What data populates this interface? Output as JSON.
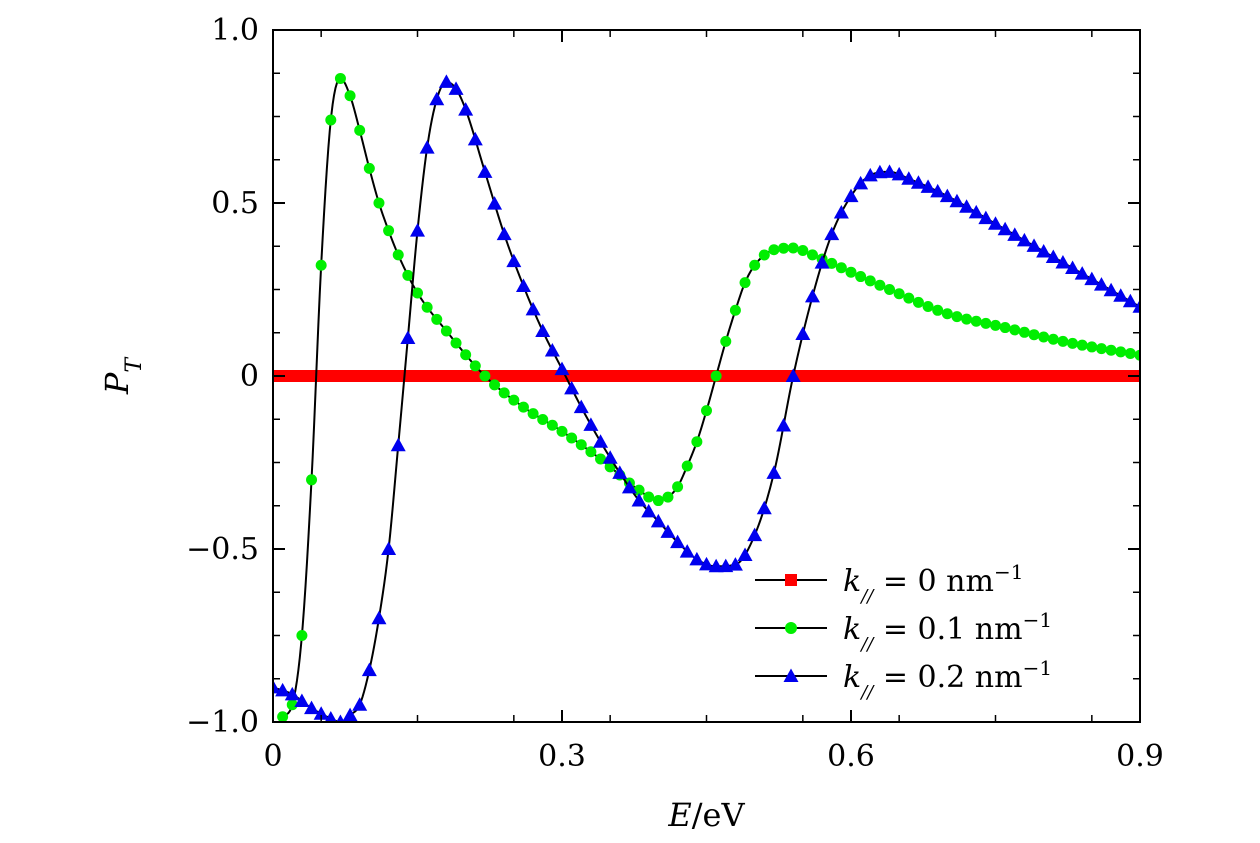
{
  "chart_data": {
    "type": "line",
    "title": "",
    "xlabel": {
      "var": "E",
      "unit": "/eV"
    },
    "ylabel": {
      "var": "P",
      "sub": "T"
    },
    "xlim": [
      0,
      0.9
    ],
    "ylim": [
      -1.0,
      1.0
    ],
    "grid": false,
    "legend_position": "bottom-right",
    "x_ticks": [
      {
        "value": 0,
        "label": "0"
      },
      {
        "value": 0.3,
        "label": "0.3"
      },
      {
        "value": 0.6,
        "label": "0.6"
      },
      {
        "value": 0.9,
        "label": "0.9"
      }
    ],
    "y_ticks": [
      {
        "value": -1.0,
        "label": "−1.0"
      },
      {
        "value": -0.5,
        "label": "−0.5"
      },
      {
        "value": 0,
        "label": "0"
      },
      {
        "value": 0.5,
        "label": "0.5"
      },
      {
        "value": 1.0,
        "label": "1.0"
      }
    ],
    "series": [
      {
        "name": "k// = 0 nm−1",
        "legend": {
          "var": "k",
          "sub": "//",
          "rest": " = 0 nm",
          "sup": "−1"
        },
        "marker": "square",
        "color": "#ff0000",
        "x_start": 0,
        "x_end": 0.9,
        "x_step": 0.005,
        "values": [
          [
            0,
            0
          ],
          [
            0.9,
            0
          ]
        ]
      },
      {
        "name": "k// = 0.1 nm−1",
        "legend": {
          "var": "k",
          "sub": "//",
          "rest": " = 0.1 nm",
          "sup": "−1"
        },
        "marker": "circle",
        "color": "#00ee00",
        "x_start": 0.01,
        "x_end": 0.9,
        "x_step": 0.01,
        "values": [
          [
            0.01,
            -0.985
          ],
          [
            0.02,
            -0.95
          ],
          [
            0.03,
            -0.75
          ],
          [
            0.04,
            -0.3
          ],
          [
            0.05,
            0.32
          ],
          [
            0.06,
            0.74
          ],
          [
            0.07,
            0.86
          ],
          [
            0.08,
            0.81
          ],
          [
            0.09,
            0.71
          ],
          [
            0.1,
            0.6
          ],
          [
            0.11,
            0.5
          ],
          [
            0.12,
            0.42
          ],
          [
            0.13,
            0.35
          ],
          [
            0.15,
            0.24
          ],
          [
            0.18,
            0.13
          ],
          [
            0.22,
            0.0
          ],
          [
            0.26,
            -0.09
          ],
          [
            0.3,
            -0.16
          ],
          [
            0.34,
            -0.24
          ],
          [
            0.38,
            -0.33
          ],
          [
            0.4,
            -0.36
          ],
          [
            0.41,
            -0.35
          ],
          [
            0.42,
            -0.32
          ],
          [
            0.43,
            -0.26
          ],
          [
            0.44,
            -0.19
          ],
          [
            0.45,
            -0.1
          ],
          [
            0.46,
            0.0
          ],
          [
            0.47,
            0.1
          ],
          [
            0.48,
            0.19
          ],
          [
            0.49,
            0.27
          ],
          [
            0.5,
            0.32
          ],
          [
            0.52,
            0.365
          ],
          [
            0.54,
            0.37
          ],
          [
            0.56,
            0.35
          ],
          [
            0.6,
            0.3
          ],
          [
            0.64,
            0.25
          ],
          [
            0.7,
            0.18
          ],
          [
            0.76,
            0.14
          ],
          [
            0.82,
            0.1
          ],
          [
            0.9,
            0.06
          ]
        ]
      },
      {
        "name": "k// = 0.2 nm−1",
        "legend": {
          "var": "k",
          "sub": "//",
          "rest": " = 0.2 nm",
          "sup": "−1"
        },
        "marker": "triangle",
        "color": "#0000ee",
        "x_start": 0.0,
        "x_end": 0.9,
        "x_step": 0.01,
        "values": [
          [
            0.0,
            -0.9
          ],
          [
            0.02,
            -0.92
          ],
          [
            0.04,
            -0.96
          ],
          [
            0.06,
            -0.99
          ],
          [
            0.07,
            -1.0
          ],
          [
            0.08,
            -0.98
          ],
          [
            0.09,
            -0.95
          ],
          [
            0.1,
            -0.85
          ],
          [
            0.11,
            -0.7
          ],
          [
            0.12,
            -0.5
          ],
          [
            0.13,
            -0.2
          ],
          [
            0.14,
            0.11
          ],
          [
            0.15,
            0.42
          ],
          [
            0.16,
            0.66
          ],
          [
            0.17,
            0.8
          ],
          [
            0.18,
            0.85
          ],
          [
            0.19,
            0.83
          ],
          [
            0.2,
            0.77
          ],
          [
            0.22,
            0.59
          ],
          [
            0.24,
            0.41
          ],
          [
            0.26,
            0.26
          ],
          [
            0.28,
            0.13
          ],
          [
            0.3,
            0.02
          ],
          [
            0.32,
            -0.09
          ],
          [
            0.34,
            -0.19
          ],
          [
            0.36,
            -0.28
          ],
          [
            0.38,
            -0.36
          ],
          [
            0.4,
            -0.42
          ],
          [
            0.42,
            -0.48
          ],
          [
            0.44,
            -0.53
          ],
          [
            0.46,
            -0.55
          ],
          [
            0.48,
            -0.545
          ],
          [
            0.5,
            -0.46
          ],
          [
            0.52,
            -0.28
          ],
          [
            0.54,
            0.0
          ],
          [
            0.56,
            0.23
          ],
          [
            0.58,
            0.41
          ],
          [
            0.6,
            0.52
          ],
          [
            0.62,
            0.58
          ],
          [
            0.64,
            0.59
          ],
          [
            0.66,
            0.57
          ],
          [
            0.7,
            0.52
          ],
          [
            0.75,
            0.44
          ],
          [
            0.8,
            0.36
          ],
          [
            0.85,
            0.28
          ],
          [
            0.9,
            0.2
          ]
        ]
      }
    ]
  }
}
